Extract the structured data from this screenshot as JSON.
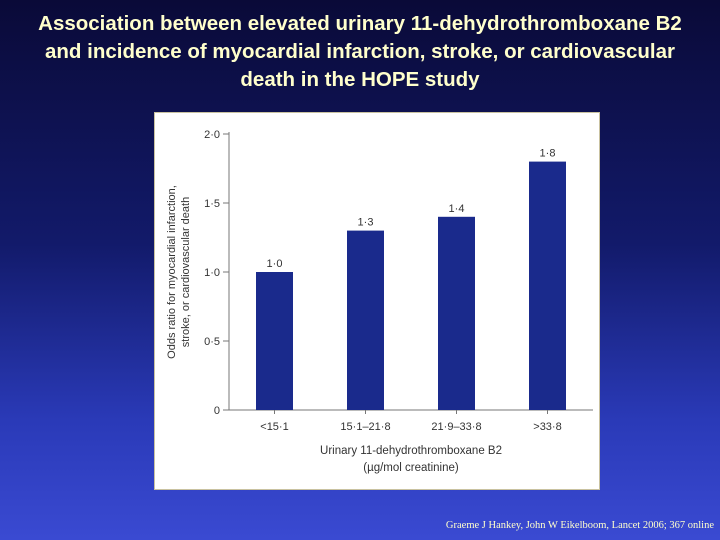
{
  "title_lines": [
    "Association between elevated urinary 11-dehydrothromboxane B2",
    "and incidence of myocardial infarction, stroke, or cardiovascular",
    "death in the HOPE study"
  ],
  "citation": "Graeme J Hankey, John W Eikelboom, Lancet 2006; 367 online",
  "colors": {
    "bar": "#1a2a8c",
    "axis": "#777777",
    "title_text": "#ffffcc"
  },
  "chart_data": {
    "type": "bar",
    "categories": [
      "<15·1",
      "15·1–21·8",
      "21·9–33·8",
      ">33·8"
    ],
    "values": [
      1.0,
      1.3,
      1.4,
      1.8
    ],
    "data_labels": [
      "1·0",
      "1·3",
      "1·4",
      "1·8"
    ],
    "ylim": [
      0,
      2.0
    ],
    "yticks": [
      0,
      0.5,
      1.0,
      1.5,
      2.0
    ],
    "ytick_labels": [
      "0",
      "0·5",
      "1·0",
      "1·5",
      "2·0"
    ],
    "ylabel_lines": [
      "Odds ratio for myocardial infarction,",
      "stroke, or cardiovascular death"
    ],
    "xlabel_lines": [
      "Urinary 11-dehydrothromboxane B2",
      "(µg/mol creatinine)"
    ],
    "grid": false
  }
}
